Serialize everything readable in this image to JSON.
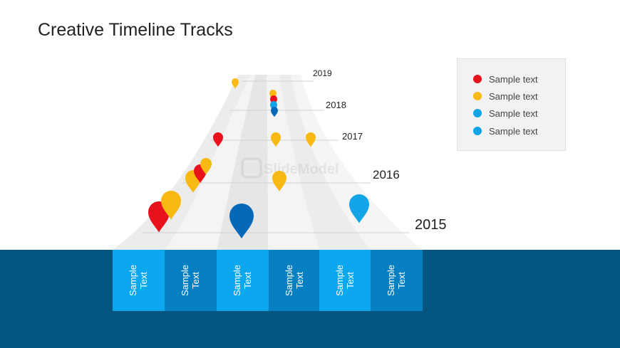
{
  "title": "Creative Timeline Tracks",
  "colors": {
    "red": "#e8121c",
    "yellow": "#f7b912",
    "light_blue": "#13a4e8",
    "dark_blue": "#0568b8",
    "track": "#e9e9e9",
    "track_alt": "#f3f3f3",
    "footer": "#045580",
    "box_light": "#0ba7ef",
    "box_dark": "#0680c2"
  },
  "years": [
    "2019",
    "2018",
    "2017",
    "2016",
    "2015"
  ],
  "boxes": [
    "Sample\nText",
    "Sample\nText",
    "Sample\nText",
    "Sample\nText",
    "Sample\nText",
    "Sample\nText"
  ],
  "legend": [
    {
      "label": "Sample text",
      "color": "#e8121c"
    },
    {
      "label": "Sample text",
      "color": "#f7b912"
    },
    {
      "label": "Sample text",
      "color": "#13a4e8"
    },
    {
      "label": "Sample text",
      "color": "#13a4e8"
    }
  ],
  "watermark": "SlideModel"
}
